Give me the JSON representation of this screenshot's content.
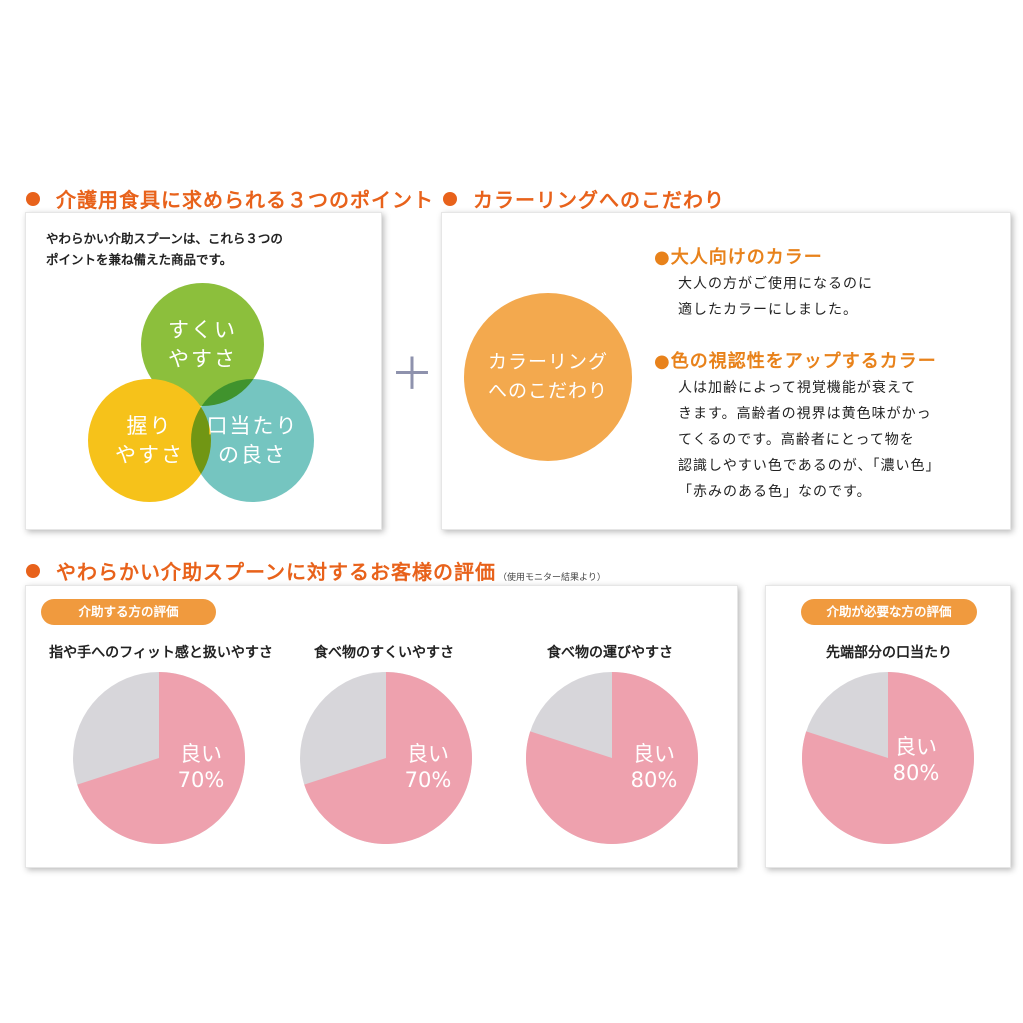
{
  "points": {
    "title": "介護用食具に求められる３つのポイント",
    "intro": "やわらかい介助スプーンは、これら３つの\nポイントを兼ね備えた商品です。",
    "circles": [
      {
        "label": "すくい\nやすさ",
        "color": "#8cbf3c"
      },
      {
        "label": "握り\nやすさ",
        "color": "#f6c21a"
      },
      {
        "label": "口当たり\nの良さ",
        "color": "#75c5c0"
      }
    ]
  },
  "plus_symbol": "＋",
  "coloring": {
    "title": "カラーリングへのこだわり",
    "circle_label": "カラーリング\nへのこだわり",
    "circle_color": "#f3a94e",
    "items": [
      {
        "heading": "●大人向けのカラー",
        "body": "大人の方がご使用になるのに\n適したカラーにしました。"
      },
      {
        "heading": "●色の視認性をアップするカラー",
        "body": "人は加齢によって視覚機能が衰えて\nきます。高齢者の視界は黄色味がかっ\nてくるのです。高齢者にとって物を\n認識しやすい色であるのが、「濃い色」\n「赤みのある色」なのです。"
      }
    ]
  },
  "evaluation": {
    "title": "やわらかい介助スプーンに対するお客様の評価",
    "note": "（使用モニター結果より）",
    "caregiver_tag": "介助する方の評価",
    "cared_tag": "介助が必要な方の評価",
    "good_label": "良い",
    "colors": {
      "good": "#eea1ae",
      "other": "#d7d6da"
    }
  },
  "chart_data": [
    {
      "type": "pie",
      "title": "指や手へのフィット感と扱いやすさ",
      "labels": [
        "良い",
        ""
      ],
      "values": [
        70,
        30
      ],
      "value_label": "70%"
    },
    {
      "type": "pie",
      "title": "食べ物のすくいやすさ",
      "labels": [
        "良い",
        ""
      ],
      "values": [
        70,
        30
      ],
      "value_label": "70%"
    },
    {
      "type": "pie",
      "title": "食べ物の運びやすさ",
      "labels": [
        "良い",
        ""
      ],
      "values": [
        80,
        20
      ],
      "value_label": "80%"
    },
    {
      "type": "pie",
      "title": "先端部分の口当たり",
      "labels": [
        "良い",
        ""
      ],
      "values": [
        80,
        20
      ],
      "value_label": "80%"
    }
  ]
}
